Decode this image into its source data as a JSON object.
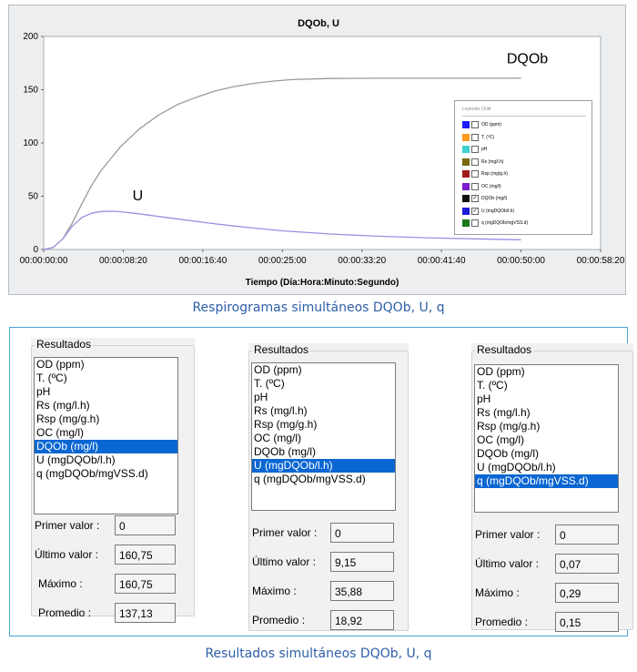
{
  "chart_data": {
    "type": "line",
    "title": "DQOb, U",
    "xlabel": "Tiempo (Día:Hora:Minuto:Segundo)",
    "ylabel": "",
    "x_ticks": [
      "00:00:00:00",
      "00:00:08:20",
      "00:00:16:40",
      "00:00:25:00",
      "00:00:33:20",
      "00:00:41:40",
      "00:00:50:00",
      "00:00:58:20"
    ],
    "x_unit": "minutes",
    "xlim": [
      0,
      58.33
    ],
    "ylim": [
      0,
      200
    ],
    "y_ticks": [
      "0",
      "50",
      "100",
      "150",
      "200"
    ],
    "grid": false,
    "series": [
      {
        "name": "DQOb",
        "color": "#9a9a9a",
        "x": [
          0,
          1,
          2,
          3,
          4,
          5,
          6,
          8,
          10,
          12,
          14,
          16,
          18,
          20,
          22,
          24,
          26,
          30,
          35,
          40,
          45,
          50
        ],
        "y": [
          0,
          2,
          10,
          25,
          43,
          60,
          74,
          96,
          113,
          126,
          136,
          143,
          149,
          153,
          156,
          158,
          159.5,
          160.5,
          160.75,
          160.75,
          160.75,
          160.75
        ]
      },
      {
        "name": "U",
        "color": "#9a90e0",
        "x": [
          0,
          1,
          2,
          3,
          4,
          5,
          6,
          7,
          8,
          10,
          12,
          15,
          18,
          21,
          25,
          30,
          35,
          40,
          45,
          50
        ],
        "y": [
          0,
          2,
          10,
          22,
          30,
          34,
          35.6,
          35.88,
          35.5,
          33.5,
          31,
          27.5,
          24,
          21,
          17.5,
          14.5,
          12.5,
          11,
          10,
          9.15
        ]
      }
    ],
    "annotations": [
      {
        "text": "DQOb",
        "x": 48.5,
        "y": 175
      },
      {
        "text": "U",
        "x": 9.3,
        "y": 46
      }
    ]
  },
  "legend": {
    "title": "Leyenda | Eliti",
    "items": [
      {
        "label": "OD (ppm)",
        "color": "#1c1cff",
        "checked": false
      },
      {
        "label": "T. (ºC)",
        "color": "#ff9a1c",
        "checked": false
      },
      {
        "label": "pH",
        "color": "#3fd0cf",
        "checked": false
      },
      {
        "label": "Rs (mg/l.h)",
        "color": "#7a6a10",
        "checked": false
      },
      {
        "label": "Rsp (mg/g.h)",
        "color": "#a31c1c",
        "checked": false
      },
      {
        "label": "OC (mg/l)",
        "color": "#7a1cd0",
        "checked": false
      },
      {
        "label": "DQOb (mg/l)",
        "color": "#111111",
        "checked": true
      },
      {
        "label": "U (mgDQOb/l.h)",
        "color": "#1c1cd8",
        "checked": true
      },
      {
        "label": "q (mgDQOb/mgVSS.d)",
        "color": "#1c7a1c",
        "checked": false
      }
    ]
  },
  "captions": {
    "chart": "Respirogramas simultáneos DQOb, U, q",
    "results": "Resultados simultáneos DQOb, U, q"
  },
  "results": [
    {
      "title": "Resultados",
      "items": [
        "OD (ppm)",
        "T. (ºC)",
        "pH",
        "Rs (mg/l.h)",
        "Rsp (mg/g.h)",
        "OC (mg/l)",
        "DQOb (mg/l)",
        "U (mgDQOb/l.h)",
        "q (mgDQOb/mgVSS.d)"
      ],
      "selected_index": 6,
      "fields": [
        {
          "label": "Primer valor :",
          "value": "0"
        },
        {
          "label": "Último valor :",
          "value": "160,75"
        },
        {
          "label": "Máximo :",
          "value": "160,75"
        },
        {
          "label": "Promedio :",
          "value": "137,13"
        }
      ]
    },
    {
      "title": "Resultados",
      "items": [
        "OD (ppm)",
        "T. (ºC)",
        "pH",
        "Rs (mg/l.h)",
        "Rsp (mg/g.h)",
        "OC (mg/l)",
        "DQOb (mg/l)",
        "U (mgDQOb/l.h)",
        "q (mgDQOb/mgVSS.d)"
      ],
      "selected_index": 7,
      "fields": [
        {
          "label": "Primer valor :",
          "value": "0"
        },
        {
          "label": "Último valor :",
          "value": "9,15"
        },
        {
          "label": "Máximo :",
          "value": "35,88"
        },
        {
          "label": "Promedio :",
          "value": "18,92"
        }
      ]
    },
    {
      "title": "Resultados",
      "items": [
        "OD (ppm)",
        "T. (ºC)",
        "pH",
        "Rs (mg/l.h)",
        "Rsp (mg/g.h)",
        "OC (mg/l)",
        "DQOb (mg/l)",
        "U (mgDQOb/l.h)",
        "q (mgDQOb/mgVSS.d)"
      ],
      "selected_index": 8,
      "fields": [
        {
          "label": "Primer valor :",
          "value": "0"
        },
        {
          "label": "Último valor :",
          "value": "0,07"
        },
        {
          "label": "Máximo :",
          "value": "0,29"
        },
        {
          "label": "Promedio :",
          "value": "0,15"
        }
      ]
    }
  ]
}
